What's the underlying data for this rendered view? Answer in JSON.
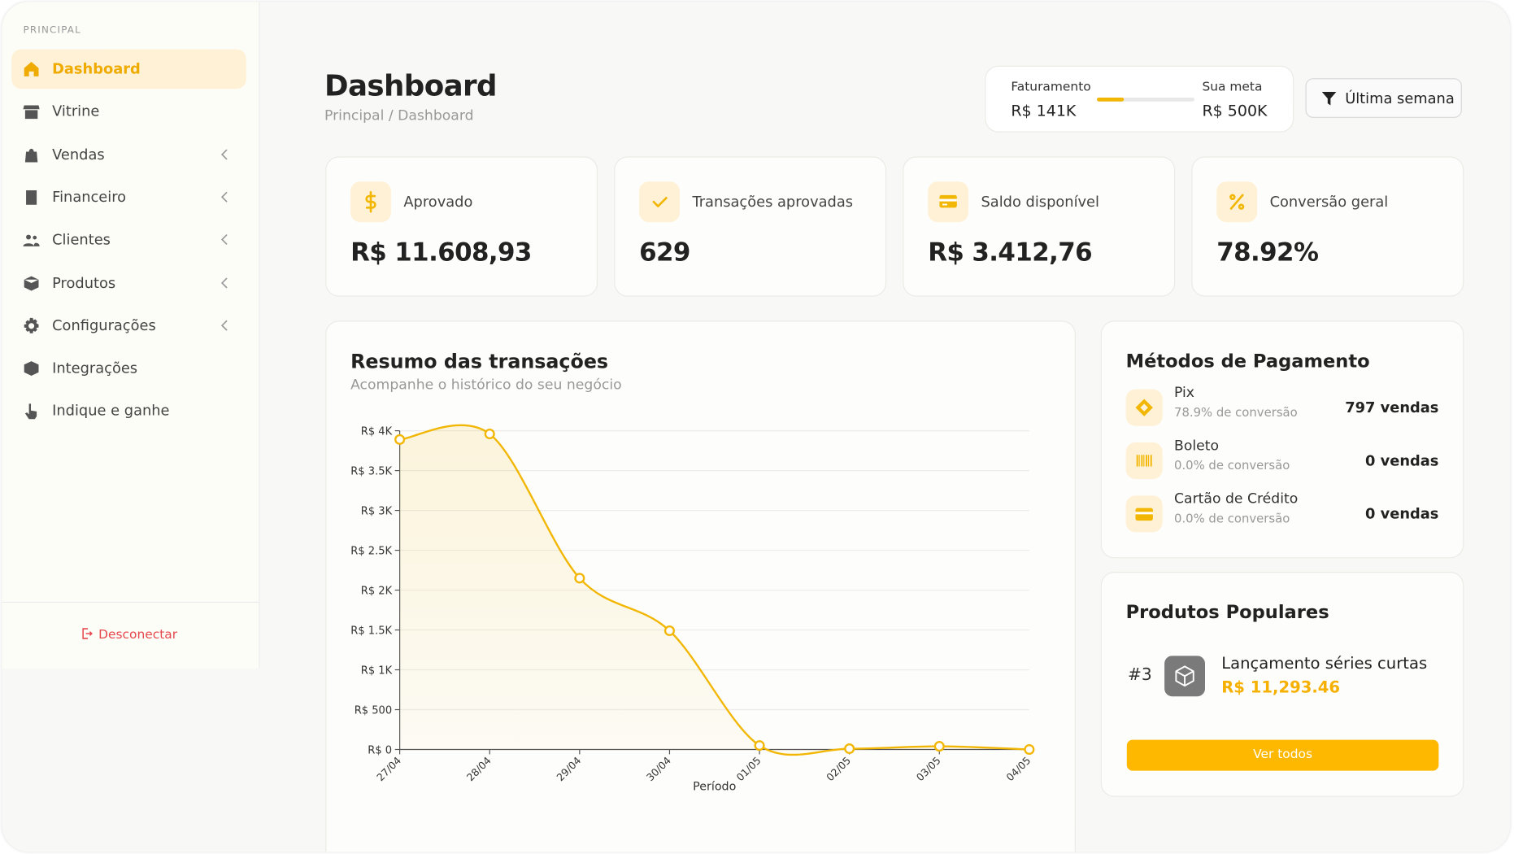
{
  "sidebar": {
    "section": "PRINCIPAL",
    "items": [
      "Dashboard",
      "Vitrine",
      "Vendas",
      "Financeiro",
      "Clientes",
      "Produtos",
      "Configurações",
      "Integrações",
      "Indique e ganhe"
    ],
    "logout": "Desconectar"
  },
  "header": {
    "title": "Dashboard",
    "breadcrumb": "Principal / Dashboard",
    "goal": {
      "label": "Faturamento",
      "value": "R$ 141K",
      "target_label": "Sua meta",
      "target_value": "R$ 500K"
    },
    "filter": "Última semana"
  },
  "stats": [
    {
      "label": "Aprovado",
      "value": "R$ 11.608,93"
    },
    {
      "label": "Transações aprovadas",
      "value": "629"
    },
    {
      "label": "Saldo disponível",
      "value": "R$ 3.412,76"
    },
    {
      "label": "Conversão geral",
      "value": "78.92%"
    }
  ],
  "chart_card": {
    "title": "Resumo das transações",
    "subtitle": "Acompanhe o histórico do seu negócio"
  },
  "chart_data": {
    "type": "line",
    "x_label": "Período",
    "categories": [
      "27/04",
      "28/04",
      "29/04",
      "30/04",
      "01/05",
      "02/05",
      "03/05",
      "04/05"
    ],
    "values": [
      3890,
      3960,
      2150,
      1490,
      50,
      10,
      40,
      0
    ],
    "color": "#f2b705",
    "ylim": [
      0,
      4000
    ],
    "yticks": [
      {
        "value": 0,
        "label": "R$ 0"
      },
      {
        "value": 500,
        "label": "R$ 500"
      },
      {
        "value": 1000,
        "label": "R$ 1K"
      },
      {
        "value": 1500,
        "label": "R$ 1.5K"
      },
      {
        "value": 2000,
        "label": "R$ 2K"
      },
      {
        "value": 2500,
        "label": "R$ 2.5K"
      },
      {
        "value": 3000,
        "label": "R$ 3K"
      },
      {
        "value": 3500,
        "label": "R$ 3.5K"
      },
      {
        "value": 4000,
        "label": "R$ 4K"
      }
    ],
    "grid": true
  },
  "payments": {
    "title": "Métodos de Pagamento",
    "methods": [
      {
        "name": "Pix",
        "conversion": "78.9% de conversão",
        "sales": "797 vendas"
      },
      {
        "name": "Boleto",
        "conversion": "0.0% de conversão",
        "sales": "0 vendas"
      },
      {
        "name": "Cartão de Crédito",
        "conversion": "0.0% de conversão",
        "sales": "0 vendas"
      }
    ]
  },
  "popular": {
    "title": "Produtos Populares",
    "rank": "#3",
    "name": "Lançamento séries curtas",
    "price": "R$ 11,293.46",
    "button": "Ver todos"
  }
}
